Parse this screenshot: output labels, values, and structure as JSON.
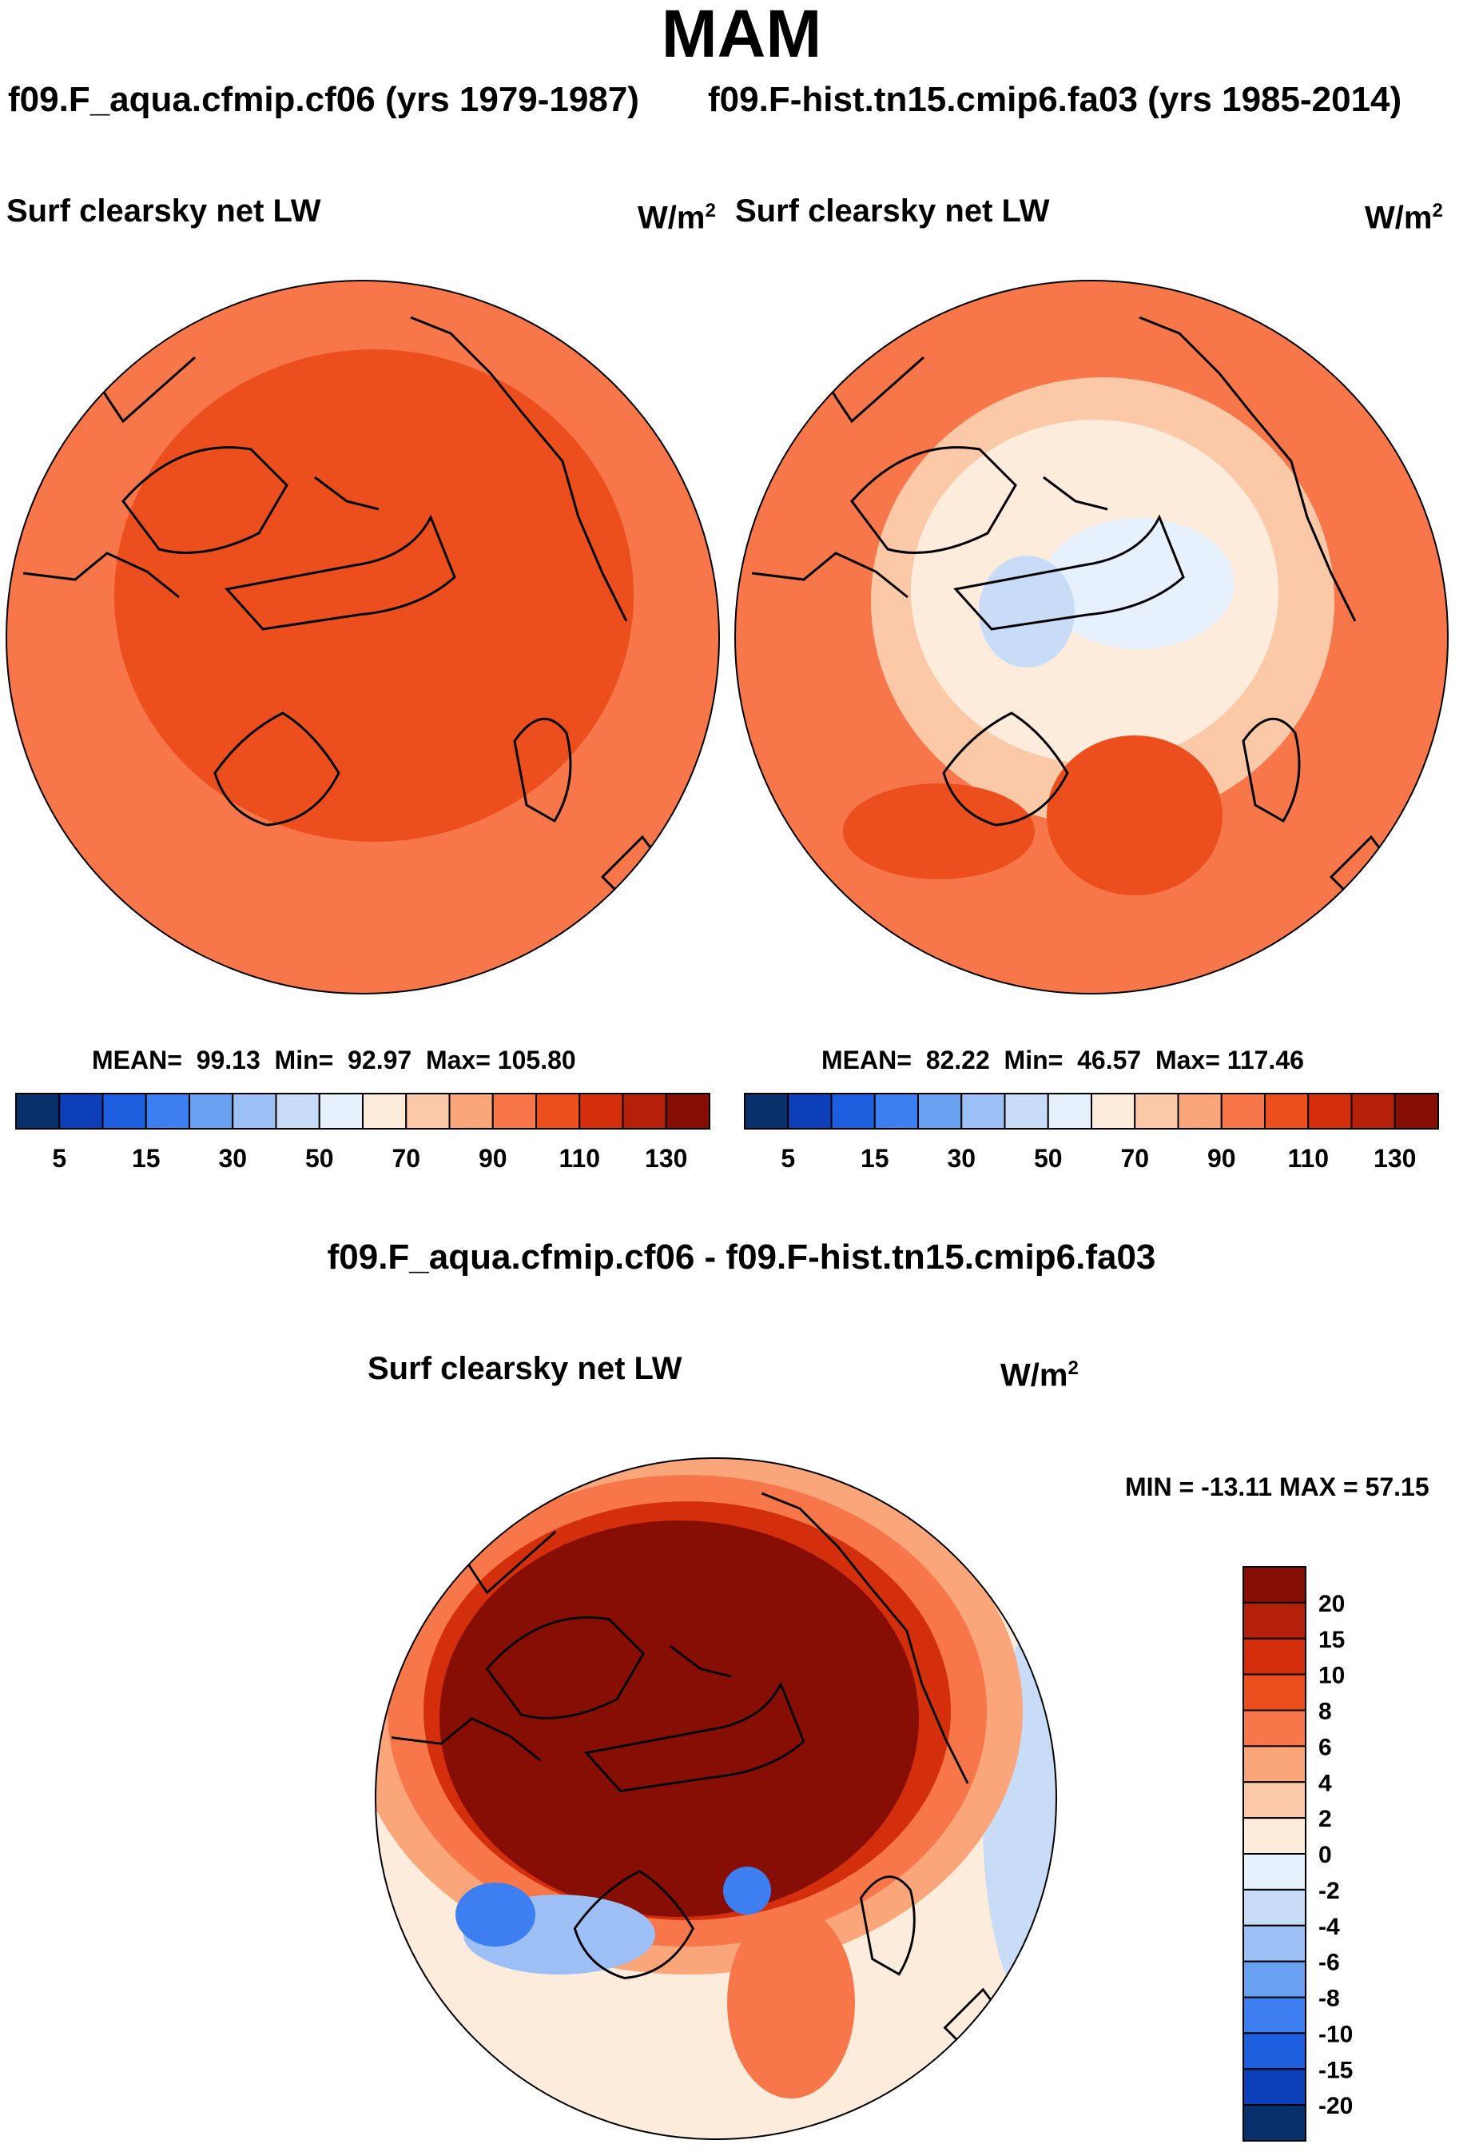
{
  "title": "MAM",
  "panels": [
    {
      "case": "f09.F_aqua.cfmip.cf06 (yrs 1979-1987)",
      "variable": "Surf clearsky net LW",
      "units": "W/m",
      "units_sup": "2",
      "stats": {
        "mean_label": "MEAN=",
        "mean": "99.13",
        "min_label": "Min=",
        "min": "92.97",
        "max_label": "Max=",
        "max": "105.80"
      }
    },
    {
      "case": "f09.F-hist.tn15.cmip6.fa03 (yrs 1985-2014)",
      "variable": "Surf clearsky net LW",
      "units": "W/m",
      "units_sup": "2",
      "stats": {
        "mean_label": "MEAN=",
        "mean": "82.22",
        "min_label": "Min=",
        "min": "46.57",
        "max_label": "Max=",
        "max": "117.46"
      }
    }
  ],
  "diff": {
    "title": "f09.F_aqua.cfmip.cf06 - f09.F-hist.tn15.cmip6.fa03",
    "variable": "Surf clearsky net LW",
    "units": "W/m",
    "units_sup": "2",
    "minmax": "MIN = -13.11 MAX =  57.15"
  },
  "chart_data": [
    {
      "type": "heatmap",
      "projection": "north-polar-stereographic",
      "title": "f09.F_aqua.cfmip.cf06 (yrs 1979-1987)",
      "variable": "Surf clearsky net LW",
      "units": "W/m2",
      "mean": 99.13,
      "min": 92.97,
      "max": 105.8,
      "contour_levels": [
        5,
        10,
        15,
        20,
        30,
        40,
        50,
        60,
        70,
        80,
        90,
        100,
        110,
        120,
        130
      ],
      "colorbar_tick_labels": [
        "5",
        "15",
        "30",
        "50",
        "70",
        "90",
        "110",
        "130"
      ],
      "colors": [
        "#08306b",
        "#0d3fb8",
        "#1e5fe0",
        "#3d7ef0",
        "#6aa0f0",
        "#9cbff5",
        "#c8dcf8",
        "#e6f1fd",
        "#fdebdc",
        "#fcc9a8",
        "#fba57a",
        "#f7774a",
        "#ec4e1e",
        "#d42f0d",
        "#b4200a",
        "#860e05"
      ],
      "field_summary": {
        "outer_band": "90-100",
        "central_arctic": "100-110"
      }
    },
    {
      "type": "heatmap",
      "projection": "north-polar-stereographic",
      "title": "f09.F-hist.tn15.cmip6.fa03 (yrs 1985-2014)",
      "variable": "Surf clearsky net LW",
      "units": "W/m2",
      "mean": 82.22,
      "min": 46.57,
      "max": 117.46,
      "contour_levels": [
        5,
        10,
        15,
        20,
        30,
        40,
        50,
        60,
        70,
        80,
        90,
        100,
        110,
        120,
        130
      ],
      "colorbar_tick_labels": [
        "5",
        "15",
        "30",
        "50",
        "70",
        "90",
        "110",
        "130"
      ],
      "colors": [
        "#08306b",
        "#0d3fb8",
        "#1e5fe0",
        "#3d7ef0",
        "#6aa0f0",
        "#9cbff5",
        "#c8dcf8",
        "#e6f1fd",
        "#fdebdc",
        "#fcc9a8",
        "#fba57a",
        "#f7774a",
        "#ec4e1e",
        "#d42f0d",
        "#b4200a",
        "#860e05"
      ],
      "field_summary": {
        "central_arctic": "50-60",
        "arctic_ocean_margins": "60-80",
        "north_atlantic": "100-110",
        "mid_latitudes": "90-100"
      }
    },
    {
      "type": "heatmap",
      "projection": "north-polar-stereographic",
      "title": "f09.F_aqua.cfmip.cf06 - f09.F-hist.tn15.cmip6.fa03",
      "variable": "Surf clearsky net LW",
      "units": "W/m2",
      "min": -13.11,
      "max": 57.15,
      "contour_levels": [
        -20,
        -15,
        -10,
        -8,
        -6,
        -4,
        -2,
        0,
        2,
        4,
        6,
        8,
        10,
        15,
        20
      ],
      "colorbar_tick_labels": [
        "20",
        "15",
        "10",
        "8",
        "6",
        "4",
        "2",
        "0",
        "-2",
        "-4",
        "-6",
        "-8",
        "-10",
        "-15",
        "-20"
      ],
      "colors": [
        "#860e05",
        "#b4200a",
        "#d42f0d",
        "#ec4e1e",
        "#f7774a",
        "#fba57a",
        "#fcc9a8",
        "#fdebdc",
        "#e6f1fd",
        "#c8dcf8",
        "#9cbff5",
        "#6aa0f0",
        "#3d7ef0",
        "#1e5fe0",
        "#0d3fb8",
        "#08306b"
      ],
      "field_summary": {
        "arctic_and_greenland": ">20",
        "margins": "4-15",
        "north_atlantic_greenland_sea": "-10 to -2",
        "pacific_midlatitudes": "-4 to 4"
      }
    }
  ]
}
